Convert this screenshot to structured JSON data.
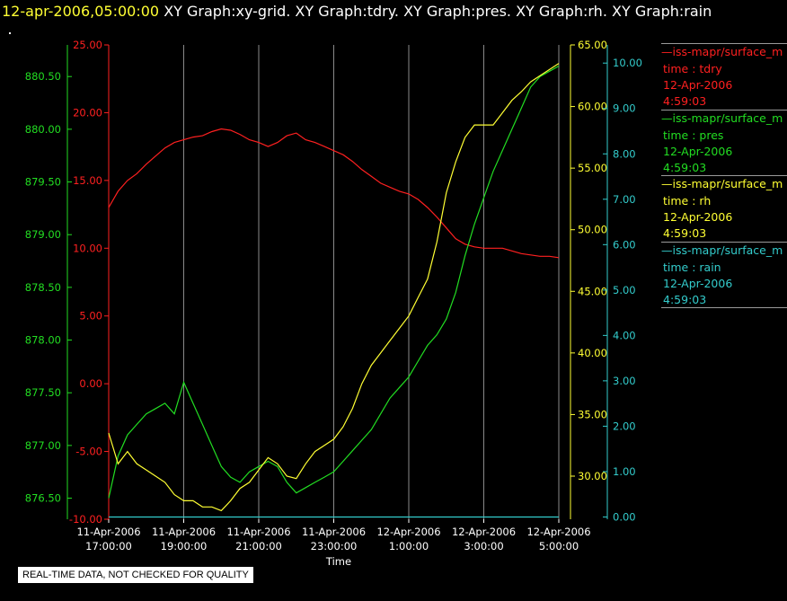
{
  "header": {
    "timestamp": "12-apr-2006,05:00:00",
    "graphs": "XY Graph:xy-grid.  XY Graph:tdry.  XY Graph:pres.  XY Graph:rh.  XY Graph:rain"
  },
  "legend": [
    {
      "name": "—iss-mapr/surface_m",
      "var": "time : tdry",
      "date": "12-Apr-2006",
      "time": "4:59:03",
      "color": "#ff2020"
    },
    {
      "name": "—iss-mapr/surface_m",
      "var": "time : pres",
      "date": "12-Apr-2006",
      "time": "4:59:03",
      "color": "#22dd22"
    },
    {
      "name": "—iss-mapr/surface_m",
      "var": "time : rh",
      "date": "12-Apr-2006",
      "time": "4:59:03",
      "color": "#ffff33"
    },
    {
      "name": "—iss-mapr/surface_m",
      "var": "time : rain",
      "date": "12-Apr-2006",
      "time": "4:59:03",
      "color": "#33cccc"
    }
  ],
  "note": "REAL-TIME DATA, NOT CHECKED FOR QUALITY",
  "chart_data": {
    "type": "line",
    "xlabel": "Time",
    "x_ticks": [
      {
        "date": "11-Apr-2006",
        "time": "17:00:00",
        "hour": 17
      },
      {
        "date": "11-Apr-2006",
        "time": "19:00:00",
        "hour": 19
      },
      {
        "date": "11-Apr-2006",
        "time": "21:00:00",
        "hour": 21
      },
      {
        "date": "11-Apr-2006",
        "time": "23:00:00",
        "hour": 23
      },
      {
        "date": "12-Apr-2006",
        "time": "1:00:00",
        "hour": 25
      },
      {
        "date": "12-Apr-2006",
        "time": "3:00:00",
        "hour": 27
      },
      {
        "date": "12-Apr-2006",
        "time": "5:00:00",
        "hour": 29
      }
    ],
    "xlim": [
      17,
      29
    ],
    "grid": "vertical",
    "axes": {
      "pres": {
        "ticks": [
          "876.50",
          "877.00",
          "877.50",
          "878.00",
          "878.50",
          "879.00",
          "879.50",
          "880.00",
          "880.50"
        ],
        "ylim": [
          876.3,
          880.8
        ],
        "color": "#22dd22"
      },
      "tdry": {
        "ticks": [
          "-10.00",
          "-5.00",
          "0.00",
          "5.00",
          "10.00",
          "15.00",
          "20.00",
          "25.00"
        ],
        "ylim": [
          -10,
          25
        ],
        "color": "#ff2020"
      },
      "rh": {
        "ticks": [
          "30.00",
          "35.00",
          "40.00",
          "45.00",
          "50.00",
          "55.00",
          "60.00",
          "65.00"
        ],
        "ylim": [
          26.5,
          65
        ],
        "color": "#ffff33"
      },
      "rain": {
        "ticks": [
          "0.00",
          "1.00",
          "2.00",
          "3.00",
          "4.00",
          "5.00",
          "6.00",
          "7.00",
          "8.00",
          "9.00",
          "10.00"
        ],
        "ylim": [
          -0.05,
          10.4
        ],
        "color": "#33cccc"
      }
    },
    "series": [
      {
        "name": "tdry",
        "axis": "tdry",
        "x": [
          17.0,
          17.25,
          17.5,
          17.75,
          18.0,
          18.25,
          18.5,
          18.75,
          19.0,
          19.25,
          19.5,
          19.75,
          20.0,
          20.25,
          20.5,
          20.75,
          21.0,
          21.25,
          21.5,
          21.75,
          22.0,
          22.25,
          22.5,
          22.75,
          23.0,
          23.25,
          23.5,
          23.75,
          24.0,
          24.25,
          24.5,
          24.75,
          25.0,
          25.25,
          25.5,
          25.75,
          26.0,
          26.25,
          26.5,
          26.75,
          27.0,
          27.25,
          27.5,
          27.75,
          28.0,
          28.25,
          28.5,
          28.75,
          29.0
        ],
        "values": [
          13.0,
          14.2,
          15.0,
          15.5,
          16.2,
          16.8,
          17.4,
          17.8,
          18.0,
          18.2,
          18.3,
          18.6,
          18.8,
          18.7,
          18.4,
          18.0,
          17.8,
          17.5,
          17.8,
          18.3,
          18.5,
          18.0,
          17.8,
          17.5,
          17.2,
          16.9,
          16.4,
          15.8,
          15.3,
          14.8,
          14.5,
          14.2,
          14.0,
          13.6,
          13.0,
          12.3,
          11.5,
          10.7,
          10.3,
          10.1,
          10.0,
          10.0,
          10.0,
          9.8,
          9.6,
          9.5,
          9.4,
          9.4,
          9.3
        ]
      },
      {
        "name": "pres",
        "axis": "pres",
        "x": [
          17.0,
          17.25,
          17.5,
          17.75,
          18.0,
          18.25,
          18.5,
          18.75,
          19.0,
          19.25,
          19.5,
          19.75,
          20.0,
          20.25,
          20.5,
          20.75,
          21.0,
          21.25,
          21.5,
          21.75,
          22.0,
          22.25,
          22.5,
          22.75,
          23.0,
          23.25,
          23.5,
          23.75,
          24.0,
          24.25,
          24.5,
          24.75,
          25.0,
          25.25,
          25.5,
          25.75,
          26.0,
          26.25,
          26.5,
          26.75,
          27.0,
          27.25,
          27.5,
          27.75,
          28.0,
          28.25,
          28.5,
          28.75,
          29.0
        ],
        "values": [
          876.5,
          876.9,
          877.1,
          877.2,
          877.3,
          877.35,
          877.4,
          877.3,
          877.6,
          877.4,
          877.2,
          877.0,
          876.8,
          876.7,
          876.65,
          876.75,
          876.8,
          876.85,
          876.8,
          876.65,
          876.55,
          876.6,
          876.65,
          876.7,
          876.75,
          876.85,
          876.95,
          877.05,
          877.15,
          877.3,
          877.45,
          877.55,
          877.65,
          877.8,
          877.95,
          878.05,
          878.2,
          878.45,
          878.8,
          879.1,
          879.35,
          879.6,
          879.8,
          880.0,
          880.2,
          880.4,
          880.5,
          880.55,
          880.6
        ]
      },
      {
        "name": "rh",
        "axis": "rh",
        "x": [
          17.0,
          17.25,
          17.5,
          17.75,
          18.0,
          18.25,
          18.5,
          18.75,
          19.0,
          19.25,
          19.5,
          19.75,
          20.0,
          20.25,
          20.5,
          20.75,
          21.0,
          21.25,
          21.5,
          21.75,
          22.0,
          22.25,
          22.5,
          22.75,
          23.0,
          23.25,
          23.5,
          23.75,
          24.0,
          24.25,
          24.5,
          24.75,
          25.0,
          25.25,
          25.5,
          25.75,
          26.0,
          26.25,
          26.5,
          26.75,
          27.0,
          27.25,
          27.5,
          27.75,
          28.0,
          28.25,
          28.5,
          28.75,
          29.0
        ],
        "values": [
          33.5,
          31.0,
          32.0,
          31.0,
          30.5,
          30.0,
          29.5,
          28.5,
          28.0,
          28.0,
          27.5,
          27.5,
          27.2,
          28.0,
          29.0,
          29.5,
          30.5,
          31.5,
          31.0,
          30.0,
          29.8,
          31.0,
          32.0,
          32.5,
          33.0,
          34.0,
          35.5,
          37.5,
          39.0,
          40.0,
          41.0,
          42.0,
          43.0,
          44.5,
          46.0,
          49.0,
          53.0,
          55.5,
          57.5,
          58.5,
          58.5,
          58.5,
          59.5,
          60.5,
          61.2,
          62.0,
          62.5,
          63.0,
          63.5
        ]
      },
      {
        "name": "rain",
        "axis": "rain",
        "x": [
          17.0,
          29.0
        ],
        "values": [
          0.0,
          0.0
        ]
      }
    ]
  }
}
